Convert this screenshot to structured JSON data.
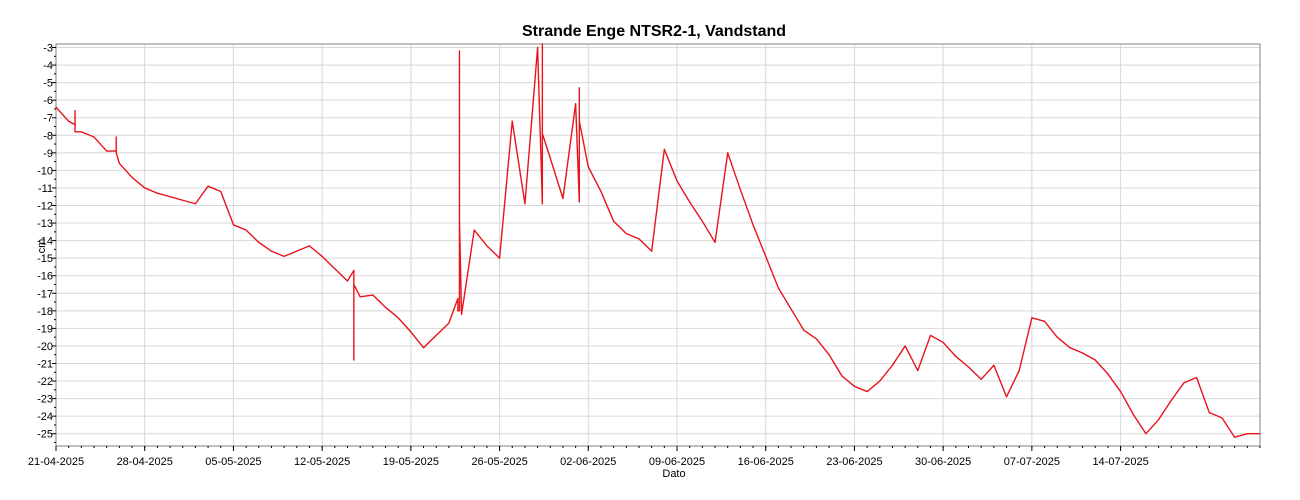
{
  "chart_data": {
    "type": "line",
    "title": "Strande Enge NTSR2-1, Vandstand",
    "xlabel": "Dato",
    "ylabel": "cm",
    "ylim": [
      -25.7,
      -2.8
    ],
    "xlim": [
      "2025-04-21",
      "2025-07-25"
    ],
    "grid": true,
    "legend": "none",
    "line_color": "#e8141c",
    "y_ticks": [
      "-3",
      "-4",
      "-5",
      "-6",
      "-7",
      "-8",
      "-9",
      "-10",
      "-11",
      "-12",
      "-13",
      "-14",
      "-15",
      "-16",
      "-17",
      "-18",
      "-19",
      "-20",
      "-21",
      "-22",
      "-23",
      "-24",
      "-25"
    ],
    "x_ticks": [
      "21-04-2025",
      "28-04-2025",
      "05-05-2025",
      "12-05-2025",
      "19-05-2025",
      "26-05-2025",
      "02-06-2025",
      "09-06-2025",
      "16-06-2025",
      "23-06-2025",
      "30-06-2025",
      "07-07-2025",
      "14-07-2025"
    ],
    "series": [
      {
        "x": [
          "2025-04-21",
          "2025-04-22",
          "2025-04-23",
          "2025-04-24",
          "2025-04-25",
          "2025-04-26",
          "2025-04-27",
          "2025-04-28",
          "2025-04-29",
          "2025-04-30",
          "2025-05-01",
          "2025-05-02",
          "2025-05-03",
          "2025-05-04",
          "2025-05-05",
          "2025-05-06",
          "2025-05-07",
          "2025-05-08",
          "2025-05-09",
          "2025-05-10",
          "2025-05-11",
          "2025-05-12",
          "2025-05-13",
          "2025-05-14",
          "2025-05-15",
          "2025-05-16",
          "2025-05-17",
          "2025-05-18",
          "2025-05-19",
          "2025-05-20",
          "2025-05-21",
          "2025-05-22",
          "2025-05-23",
          "2025-05-24",
          "2025-05-25",
          "2025-05-26",
          "2025-05-27",
          "2025-05-28",
          "2025-05-29",
          "2025-05-30",
          "2025-05-31",
          "2025-06-01",
          "2025-06-02",
          "2025-06-03",
          "2025-06-04",
          "2025-06-05",
          "2025-06-06",
          "2025-06-07",
          "2025-06-08",
          "2025-06-09",
          "2025-06-10",
          "2025-06-11",
          "2025-06-12",
          "2025-06-13",
          "2025-06-14",
          "2025-06-15",
          "2025-06-16",
          "2025-06-17",
          "2025-06-18",
          "2025-06-19",
          "2025-06-20",
          "2025-06-21",
          "2025-06-22",
          "2025-06-23",
          "2025-06-24",
          "2025-06-25",
          "2025-06-26",
          "2025-06-27",
          "2025-06-28",
          "2025-06-29",
          "2025-06-30",
          "2025-07-01",
          "2025-07-02",
          "2025-07-03",
          "2025-07-04",
          "2025-07-05",
          "2025-07-06",
          "2025-07-07",
          "2025-07-08",
          "2025-07-09",
          "2025-07-10",
          "2025-07-11",
          "2025-07-12",
          "2025-07-13",
          "2025-07-14",
          "2025-07-15",
          "2025-07-16",
          "2025-07-17",
          "2025-07-18",
          "2025-07-19",
          "2025-07-20",
          "2025-07-21",
          "2025-07-22",
          "2025-07-23",
          "2025-07-24",
          "2025-07-25"
        ],
        "values": [
          -6.4,
          -7.2,
          -7.8,
          -8.1,
          -8.9,
          -9.6,
          -10.4,
          -11.0,
          -11.3,
          -11.5,
          -11.7,
          -11.9,
          -10.9,
          -11.2,
          -13.1,
          -13.4,
          -14.1,
          -14.6,
          -14.9,
          -14.6,
          -14.3,
          -14.9,
          -15.6,
          -16.3,
          -17.2,
          -17.1,
          -17.8,
          -18.4,
          -19.2,
          -20.1,
          -19.4,
          -18.7,
          -18.2,
          -13.4,
          -14.3,
          -15.0,
          -7.2,
          -11.9,
          -3.0,
          -9.3,
          -11.6,
          -6.2,
          -9.8,
          -11.2,
          -12.9,
          -13.6,
          -13.9,
          -14.6,
          -8.8,
          -10.6,
          -11.8,
          -12.9,
          -14.1,
          -9.0,
          -11.1,
          -13.1,
          -14.9,
          -16.7,
          -17.9,
          -19.1,
          -19.6,
          -20.5,
          -21.7,
          -22.3,
          -22.6,
          -22.0,
          -21.1,
          -20.0,
          -21.4,
          -19.4,
          -19.8,
          -20.6,
          -21.2,
          -21.9,
          -21.1,
          -22.9,
          -21.4,
          -18.4,
          -18.6,
          -19.5,
          -20.1,
          -20.4,
          -20.8,
          -21.6,
          -22.6,
          -23.9,
          -25.0,
          -24.2,
          -23.1,
          -22.1,
          -21.8,
          -23.8,
          -24.1,
          -25.2,
          -25.0,
          -25.0
        ],
        "spikes": [
          {
            "x": "2025-04-22 12:00",
            "values": [
              -7.4,
              -6.6,
              -7.8
            ]
          },
          {
            "x": "2025-04-25 18:00",
            "values": [
              -8.9,
              -8.1,
              -9.0
            ]
          },
          {
            "x": "2025-05-14 12:00",
            "values": [
              -15.7,
              -20.8,
              -16.5
            ]
          },
          {
            "x": "2025-05-22 17:00",
            "values": [
              -17.3,
              -18.0
            ]
          },
          {
            "x": "2025-05-22 20:00",
            "values": [
              -18.0,
              -3.2,
              -12.8
            ]
          },
          {
            "x": "2025-05-29 09:00",
            "values": [
              -11.9,
              -2.8,
              -7.9
            ]
          },
          {
            "x": "2025-06-01 07:00",
            "values": [
              -11.8,
              -5.3,
              -7.2
            ]
          }
        ]
      }
    ]
  }
}
